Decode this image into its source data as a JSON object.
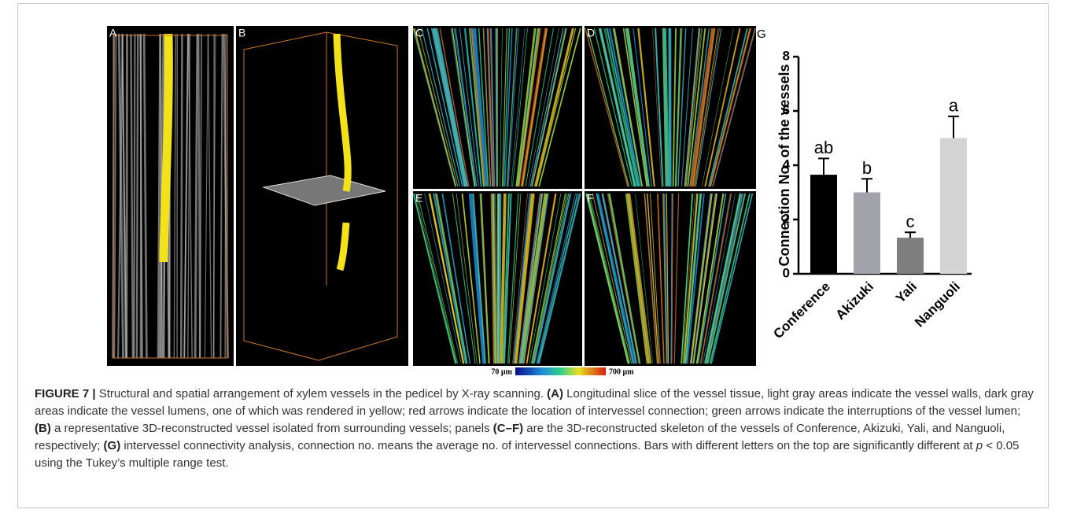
{
  "panels": [
    "A",
    "B",
    "C",
    "D",
    "E",
    "F"
  ],
  "colorbar": {
    "min_label": "70 µm",
    "max_label": "700 µm"
  },
  "chart_data": {
    "type": "bar",
    "panel_label": "G",
    "ylabel": "Connection No. of the vessels",
    "categories": [
      "Conference",
      "Akizuki",
      "Yali",
      "Nanguoli"
    ],
    "values": [
      3.65,
      3.0,
      1.33,
      5.0
    ],
    "errors": [
      0.6,
      0.5,
      0.2,
      0.8
    ],
    "letters": [
      "ab",
      "b",
      "c",
      "a"
    ],
    "colors": [
      "#000000",
      "#a2a2aa",
      "#7e7e7e",
      "#d4d4d4"
    ],
    "ylim": [
      0,
      8
    ],
    "yticks": [
      0,
      2,
      4,
      6,
      8
    ]
  },
  "caption": [
    {
      "text": "FIGURE 7 |",
      "style": "bold"
    },
    {
      "text": " Structural and spatial arrangement of xylem vessels in the pedicel by X-ray scanning. ",
      "style": "normal"
    },
    {
      "text": "(A)",
      "style": "bold"
    },
    {
      "text": " Longitudinal slice of the vessel tissue, light gray areas indicate the vessel walls, dark gray areas indicate the vessel lumens, one of which was rendered in yellow; red arrows indicate the location of intervessel connection; green arrows indicate the interruptions of the vessel lumen; ",
      "style": "normal"
    },
    {
      "text": "(B)",
      "style": "bold"
    },
    {
      "text": " a representative 3D-reconstructed vessel isolated from surrounding vessels; panels ",
      "style": "normal"
    },
    {
      "text": "(C–F)",
      "style": "bold"
    },
    {
      "text": " are the 3D-reconstructed skeleton of the vessels of Conference, Akizuki, Yali, and Nanguoli, respectively; ",
      "style": "normal"
    },
    {
      "text": "(G)",
      "style": "bold"
    },
    {
      "text": " intervessel connectivity analysis, connection no. means the average no. of intervessel connections. Bars with different letters on the top are significantly different at ",
      "style": "normal"
    },
    {
      "text": "p",
      "style": "italic"
    },
    {
      "text": " < 0.05 using the Tukey’s multiple range test.",
      "style": "normal"
    }
  ]
}
